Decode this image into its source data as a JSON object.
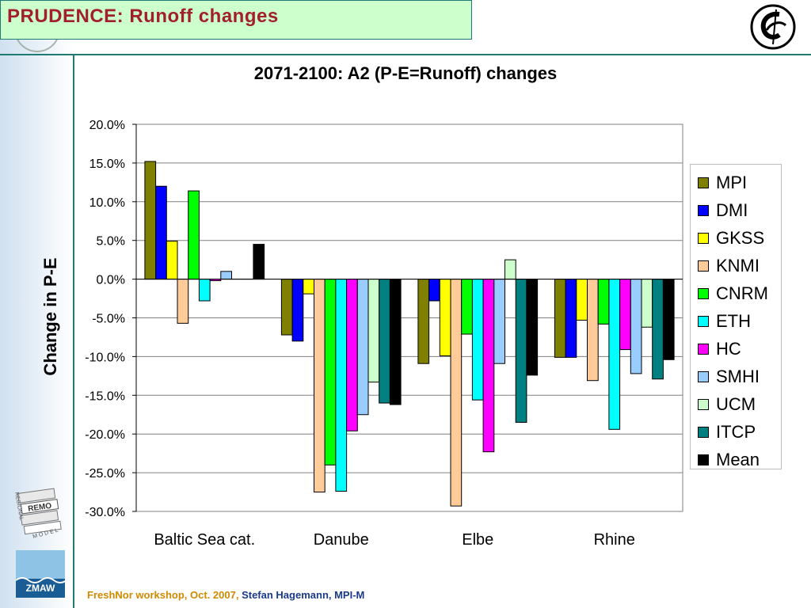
{
  "slide": {
    "title": "PRUDENCE: Runoff changes",
    "footer_event": "FreshNor workshop, Oct. 2007,",
    "footer_author": "Stefan Hagemann, MPI-M",
    "remo_logo": {
      "top": "REMO",
      "side": "REGIONAL",
      "bottom": "MODEL"
    },
    "zmaw_logo": "ZMAW"
  },
  "colors": {
    "title": "#a11f2e",
    "title_bg": "#ccffcc",
    "rule": "#1f7a73",
    "footer_event": "#d08a00",
    "footer_author": "#1a3a8a"
  },
  "chart_data": {
    "type": "bar",
    "title": "2071-2100: A2 (P-E=Runoff) changes",
    "xlabel": "",
    "ylabel": "Change in P-E",
    "ylim": [
      -30,
      20
    ],
    "yticks": [
      20,
      15,
      10,
      5,
      0,
      -5,
      -10,
      -15,
      -20,
      -25,
      -30
    ],
    "ytick_labels": [
      "20.0%",
      "15.0%",
      "10.0%",
      "5.0%",
      "0.0%",
      "-5.0%",
      "-10.0%",
      "-15.0%",
      "-20.0%",
      "-25.0%",
      "-30.0%"
    ],
    "grid": true,
    "legend_position": "right",
    "categories": [
      "Baltic Sea cat.",
      "Danube",
      "Elbe",
      "Rhine"
    ],
    "series": [
      {
        "name": "MPI",
        "color": "#808000",
        "values": [
          15.2,
          -7.2,
          -10.9,
          -10.1
        ]
      },
      {
        "name": "DMI",
        "color": "#0000ff",
        "values": [
          12.0,
          -8.0,
          -2.8,
          -10.1
        ]
      },
      {
        "name": "GKSS",
        "color": "#ffff00",
        "values": [
          4.9,
          -1.9,
          -9.9,
          -5.3
        ]
      },
      {
        "name": "KNMI",
        "color": "#ffcc99",
        "values": [
          -5.7,
          -27.5,
          -29.3,
          -13.1
        ]
      },
      {
        "name": "CNRM",
        "color": "#00ff00",
        "values": [
          11.4,
          -24.0,
          -7.1,
          -5.8
        ]
      },
      {
        "name": "ETH",
        "color": "#00ffff",
        "values": [
          -2.8,
          -27.4,
          -15.6,
          -19.4
        ]
      },
      {
        "name": "HC",
        "color": "#ff00ff",
        "values": [
          -0.2,
          -19.6,
          -22.3,
          -9.1
        ]
      },
      {
        "name": "SMHI",
        "color": "#99ccff",
        "values": [
          1.0,
          -17.5,
          -10.9,
          -12.2
        ]
      },
      {
        "name": "UCM",
        "color": "#ccffcc",
        "values": [
          0.0,
          -13.3,
          2.5,
          -6.2
        ]
      },
      {
        "name": "ITCP",
        "color": "#008080",
        "values": [
          0.0,
          -16.0,
          -18.5,
          -12.9
        ]
      },
      {
        "name": "Mean",
        "color": "#000000",
        "values": [
          4.5,
          -16.2,
          -12.4,
          -10.4
        ]
      }
    ]
  }
}
